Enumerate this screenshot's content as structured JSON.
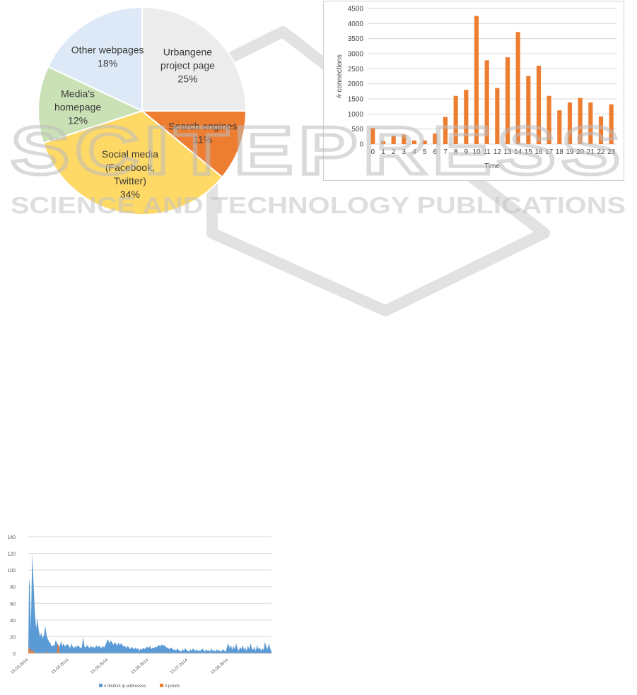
{
  "colors": {
    "pie_urbangene": "#ececec",
    "pie_search": "#ed7d31",
    "pie_social": "#ffd966",
    "pie_media": "#c9e1b4",
    "pie_other": "#dde9f6",
    "bar": "#ed7d31",
    "area_ip": "#5b9bd5",
    "area_ponds": "#ed7d31",
    "watermark": "#d0d0d0"
  },
  "watermark": {
    "logo": "SCITEPRESS",
    "tagline": "SCIENCE AND TECHNOLOGY PUBLICATIONS"
  },
  "chart_data": [
    {
      "type": "pie",
      "title": "",
      "slices": [
        {
          "lines": [
            "Urbangene",
            "project page",
            "25%"
          ],
          "value": 25,
          "color": "#ececec"
        },
        {
          "lines": [
            "Search engines",
            "11%"
          ],
          "value": 11,
          "color": "#ed7d31"
        },
        {
          "lines": [
            "Social media",
            "(Facebook,",
            "Twitter)",
            "34%"
          ],
          "value": 34,
          "color": "#ffd966"
        },
        {
          "lines": [
            "Media's",
            "homepage",
            "12%"
          ],
          "value": 12,
          "color": "#c9e1b4"
        },
        {
          "lines": [
            "Other webpages",
            "18%"
          ],
          "value": 18,
          "color": "#dde9f6"
        }
      ]
    },
    {
      "type": "bar",
      "title": "",
      "xlabel": "Time",
      "ylabel": "# connections",
      "ylim": [
        0,
        4500
      ],
      "yticks": [
        0,
        500,
        1000,
        1500,
        2000,
        2500,
        3000,
        3500,
        4000,
        4500
      ],
      "categories": [
        "0",
        "1",
        "2",
        "3",
        "4",
        "5",
        "6",
        "7",
        "8",
        "9",
        "10",
        "11",
        "12",
        "13",
        "14",
        "15",
        "16",
        "17",
        "18",
        "19",
        "20",
        "21",
        "22",
        "23"
      ],
      "values": [
        540,
        100,
        280,
        320,
        120,
        120,
        350,
        900,
        1600,
        1800,
        4250,
        2780,
        1860,
        2880,
        3720,
        2260,
        2600,
        1600,
        1120,
        1380,
        1530,
        1380,
        920,
        1320
      ]
    },
    {
      "type": "area",
      "title": "",
      "ylim": [
        0,
        140
      ],
      "yticks": [
        0,
        20,
        40,
        60,
        80,
        100,
        120,
        140
      ],
      "xticks": [
        "15.03.2014",
        "15.04.2014",
        "15.05.2014",
        "15.06.2014",
        "15.07.2014",
        "15.08.2014"
      ],
      "x_range_days": [
        0,
        186
      ],
      "xtick_days": [
        0,
        31,
        61,
        92,
        122,
        153
      ],
      "series": [
        {
          "name": "# distinct ip addresses",
          "color": "#5b9bd5",
          "points": [
            [
              0,
              0
            ],
            [
              0.5,
              80
            ],
            [
              1,
              90
            ],
            [
              2,
              30
            ],
            [
              3,
              120
            ],
            [
              4,
              85
            ],
            [
              5,
              50
            ],
            [
              6,
              30
            ],
            [
              7,
              42
            ],
            [
              8,
              28
            ],
            [
              9,
              20
            ],
            [
              10,
              25
            ],
            [
              11,
              18
            ],
            [
              12,
              22
            ],
            [
              13,
              33
            ],
            [
              14,
              22
            ],
            [
              15,
              17
            ],
            [
              16,
              14
            ],
            [
              17,
              12
            ],
            [
              18,
              8
            ],
            [
              19,
              10
            ],
            [
              20,
              9
            ],
            [
              21,
              16
            ],
            [
              22,
              12
            ],
            [
              23,
              10
            ],
            [
              24,
              8
            ],
            [
              25,
              15
            ],
            [
              26,
              9
            ],
            [
              27,
              12
            ],
            [
              28,
              8
            ],
            [
              29,
              10
            ],
            [
              30,
              11
            ],
            [
              31,
              9
            ],
            [
              32,
              6
            ],
            [
              33,
              12
            ],
            [
              34,
              8
            ],
            [
              35,
              6
            ],
            [
              36,
              9
            ],
            [
              37,
              7
            ],
            [
              38,
              10
            ],
            [
              39,
              8
            ],
            [
              40,
              6
            ],
            [
              41,
              8
            ],
            [
              42,
              20
            ],
            [
              43,
              8
            ],
            [
              44,
              7
            ],
            [
              45,
              10
            ],
            [
              46,
              8
            ],
            [
              47,
              6
            ],
            [
              48,
              9
            ],
            [
              49,
              7
            ],
            [
              50,
              8
            ],
            [
              51,
              6
            ],
            [
              52,
              10
            ],
            [
              53,
              7
            ],
            [
              54,
              9
            ],
            [
              55,
              8
            ],
            [
              56,
              6
            ],
            [
              57,
              9
            ],
            [
              58,
              7
            ],
            [
              59,
              10
            ],
            [
              60,
              14
            ],
            [
              61,
              17
            ],
            [
              62,
              12
            ],
            [
              63,
              15
            ],
            [
              64,
              14
            ],
            [
              65,
              10
            ],
            [
              66,
              13
            ],
            [
              67,
              12
            ],
            [
              68,
              9
            ],
            [
              69,
              13
            ],
            [
              70,
              10
            ],
            [
              71,
              12
            ],
            [
              72,
              10
            ],
            [
              73,
              8
            ],
            [
              74,
              9
            ],
            [
              75,
              6
            ],
            [
              76,
              9
            ],
            [
              77,
              7
            ],
            [
              78,
              5
            ],
            [
              79,
              8
            ],
            [
              80,
              6
            ],
            [
              81,
              5
            ],
            [
              82,
              7
            ],
            [
              83,
              5
            ],
            [
              84,
              6
            ],
            [
              85,
              3
            ],
            [
              86,
              6
            ],
            [
              87,
              4
            ],
            [
              88,
              7
            ],
            [
              89,
              5
            ],
            [
              90,
              7
            ],
            [
              91,
              8
            ],
            [
              92,
              6
            ],
            [
              93,
              9
            ],
            [
              94,
              5
            ],
            [
              95,
              7
            ],
            [
              96,
              6
            ],
            [
              97,
              8
            ],
            [
              98,
              7
            ],
            [
              99,
              9
            ],
            [
              100,
              10
            ],
            [
              101,
              8
            ],
            [
              102,
              11
            ],
            [
              103,
              9
            ],
            [
              104,
              10
            ],
            [
              105,
              8
            ],
            [
              106,
              7
            ],
            [
              107,
              6
            ],
            [
              108,
              5
            ],
            [
              109,
              7
            ],
            [
              110,
              6
            ],
            [
              111,
              4
            ],
            [
              112,
              5
            ],
            [
              113,
              3
            ],
            [
              114,
              6
            ],
            [
              115,
              4
            ],
            [
              116,
              3
            ],
            [
              117,
              2
            ],
            [
              118,
              5
            ],
            [
              119,
              3
            ],
            [
              120,
              6
            ],
            [
              121,
              4
            ],
            [
              122,
              3
            ],
            [
              123,
              2
            ],
            [
              124,
              5
            ],
            [
              125,
              3
            ],
            [
              126,
              6
            ],
            [
              127,
              4
            ],
            [
              128,
              3
            ],
            [
              129,
              5
            ],
            [
              130,
              2
            ],
            [
              131,
              4
            ],
            [
              132,
              3
            ],
            [
              133,
              6
            ],
            [
              134,
              4
            ],
            [
              135,
              2
            ],
            [
              136,
              5
            ],
            [
              137,
              3
            ],
            [
              138,
              4
            ],
            [
              139,
              2
            ],
            [
              140,
              6
            ],
            [
              141,
              3
            ],
            [
              142,
              4
            ],
            [
              143,
              2
            ],
            [
              144,
              5
            ],
            [
              145,
              3
            ],
            [
              146,
              4
            ],
            [
              147,
              2
            ],
            [
              148,
              3
            ],
            [
              149,
              5
            ],
            [
              150,
              3
            ],
            [
              151,
              2
            ],
            [
              152,
              8
            ],
            [
              153,
              12
            ],
            [
              154,
              6
            ],
            [
              155,
              10
            ],
            [
              156,
              4
            ],
            [
              157,
              9
            ],
            [
              158,
              5
            ],
            [
              159,
              12
            ],
            [
              160,
              6
            ],
            [
              161,
              3
            ],
            [
              162,
              8
            ],
            [
              163,
              5
            ],
            [
              164,
              10
            ],
            [
              165,
              4
            ],
            [
              166,
              7
            ],
            [
              167,
              3
            ],
            [
              168,
              9
            ],
            [
              169,
              5
            ],
            [
              170,
              12
            ],
            [
              171,
              6
            ],
            [
              172,
              4
            ],
            [
              173,
              8
            ],
            [
              174,
              3
            ],
            [
              175,
              10
            ],
            [
              176,
              5
            ],
            [
              177,
              7
            ],
            [
              178,
              3
            ],
            [
              179,
              6
            ],
            [
              180,
              4
            ],
            [
              181,
              14
            ],
            [
              182,
              8
            ],
            [
              183,
              5
            ],
            [
              184,
              12
            ],
            [
              185,
              6
            ],
            [
              186,
              2
            ]
          ]
        },
        {
          "name": "# ponds",
          "color": "#ed7d31",
          "points": [
            [
              0,
              0
            ],
            [
              0.5,
              6
            ],
            [
              1,
              8
            ],
            [
              1.5,
              3
            ],
            [
              2,
              5
            ],
            [
              2.5,
              2
            ],
            [
              3,
              4
            ],
            [
              3.5,
              1
            ],
            [
              4,
              3
            ],
            [
              5,
              1
            ],
            [
              6,
              0
            ],
            [
              14,
              0
            ],
            [
              14.5,
              3
            ],
            [
              15,
              1
            ],
            [
              16,
              0
            ],
            [
              19,
              0
            ],
            [
              19.5,
              2
            ],
            [
              20,
              0
            ],
            [
              22,
              0
            ],
            [
              22.5,
              12
            ],
            [
              23,
              10
            ],
            [
              23.5,
              4
            ],
            [
              24,
              0
            ],
            [
              186,
              0
            ]
          ]
        }
      ],
      "legend": [
        "# distinct ip addresses",
        "# ponds"
      ],
      "legend_position": "bottom"
    }
  ]
}
